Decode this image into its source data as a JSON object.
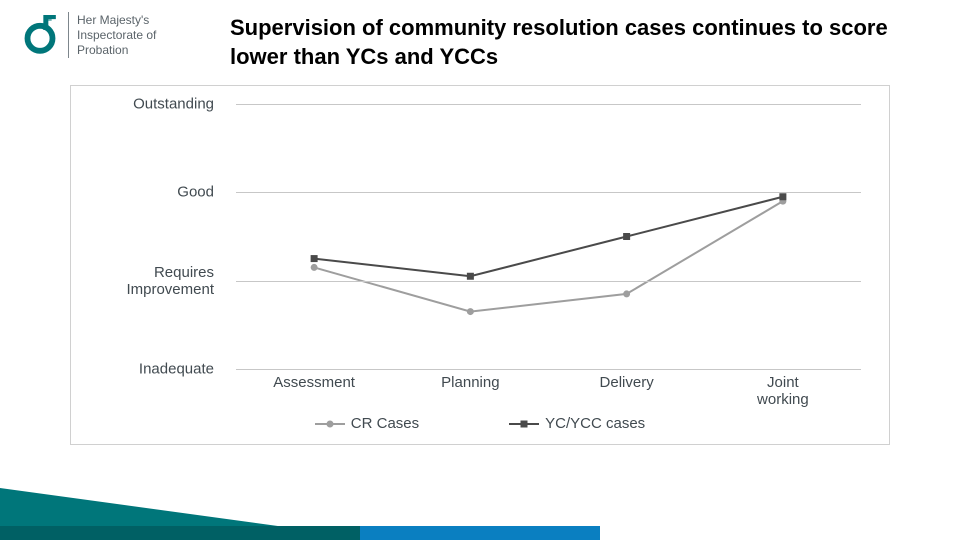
{
  "brand": {
    "name": "Her Majesty's Inspectorate of Probation",
    "line1": "Her Majesty's",
    "line2": "Inspectorate of",
    "line3": "Probation",
    "logo_color": "#00767a",
    "text_color": "#5b646a"
  },
  "title": "Supervision of community resolution cases continues to score lower than YCs and YCCs",
  "title_fontsize": 22,
  "chart": {
    "type": "line",
    "background_color": "#ffffff",
    "border_color": "#d0d0d0",
    "grid_color": "#c7c7c7",
    "text_color": "#414a50",
    "label_fontsize": 15,
    "ylim": [
      0,
      3
    ],
    "y_ticks": [
      {
        "value": 0,
        "label": "Inadequate"
      },
      {
        "value": 1,
        "label": "Requires Improvement"
      },
      {
        "value": 2,
        "label": "Good"
      },
      {
        "value": 3,
        "label": "Outstanding"
      }
    ],
    "x_categories": [
      "Assessment",
      "Planning",
      "Delivery",
      "Joint working"
    ],
    "series": [
      {
        "name": "CR Cases",
        "color": "#9e9e9e",
        "marker": "circle",
        "marker_size": 7,
        "line_width": 2,
        "values": [
          1.15,
          0.65,
          0.85,
          1.9
        ]
      },
      {
        "name": "YC/YCC cases",
        "color": "#4a4a4a",
        "marker": "square",
        "marker_size": 7,
        "line_width": 2,
        "values": [
          1.25,
          1.05,
          1.5,
          1.95
        ]
      }
    ]
  },
  "footer": {
    "teal": "#00767a",
    "dark_teal": "#006064",
    "blue": "#0a7fc1"
  }
}
